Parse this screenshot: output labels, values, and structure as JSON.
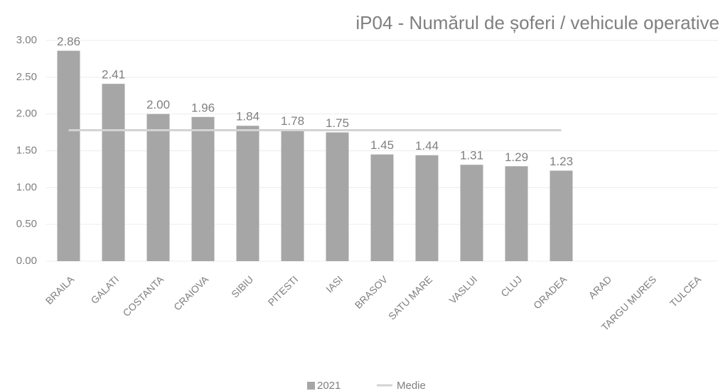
{
  "chart_data": {
    "type": "bar",
    "title": "iP04 - Numărul de șoferi / vehicule operative",
    "categories": [
      "BRAILA",
      "GALATI",
      "COSTANTA",
      "CRAIOVA",
      "SIBIU",
      "PITESTI",
      "IASI",
      "BRASOV",
      "SATU MARE",
      "VASLUI",
      "CLUJ",
      "ORADEA",
      "ARAD",
      "TARGU MURES",
      "TULCEA"
    ],
    "series": [
      {
        "name": "2021",
        "type": "bar",
        "color": "#a6a6a6",
        "values": [
          2.86,
          2.41,
          2.0,
          1.96,
          1.84,
          1.78,
          1.75,
          1.45,
          1.44,
          1.31,
          1.29,
          1.23,
          null,
          null,
          null
        ],
        "value_labels": [
          "2.86",
          "2.41",
          "2.00",
          "1.96",
          "1.84",
          "1.78",
          "1.75",
          "1.45",
          "1.44",
          "1.31",
          "1.29",
          "1.23",
          null,
          null,
          null
        ]
      },
      {
        "name": "Medie",
        "type": "line",
        "color": "#d3d3d3",
        "values": [
          1.78,
          1.78,
          1.78,
          1.78,
          1.78,
          1.78,
          1.78,
          1.78,
          1.78,
          1.78,
          1.78,
          1.78,
          null,
          null,
          null
        ]
      }
    ],
    "ylim": [
      0,
      3
    ],
    "yticks": [
      {
        "value": 0,
        "label": "0.00"
      },
      {
        "value": 0.5,
        "label": "0.50"
      },
      {
        "value": 1,
        "label": "1.00"
      },
      {
        "value": 1.5,
        "label": "1.50"
      },
      {
        "value": 2,
        "label": "2.00"
      },
      {
        "value": 2.5,
        "label": "2.50"
      },
      {
        "value": 3,
        "label": "3.00"
      }
    ],
    "grid": true,
    "legend": "bottom"
  }
}
